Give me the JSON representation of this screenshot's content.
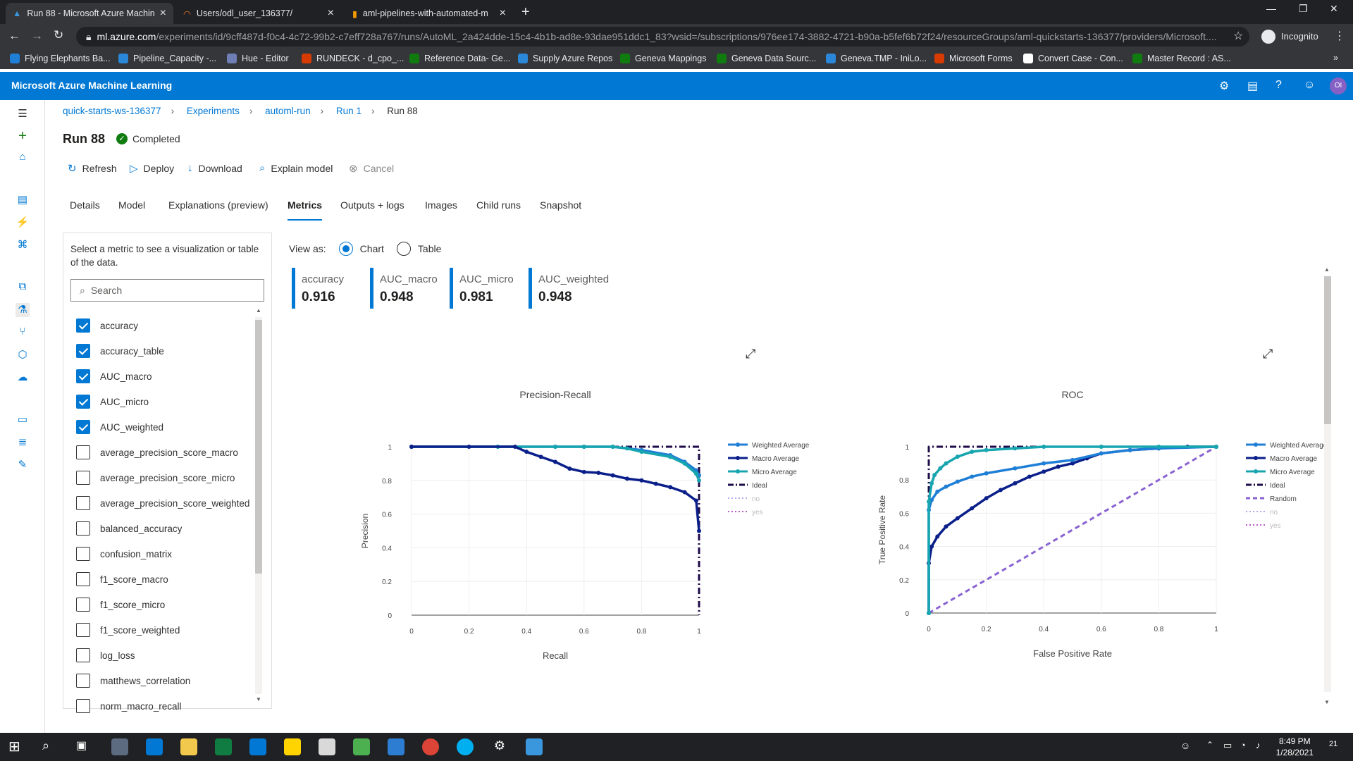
{
  "browser": {
    "tabs": [
      {
        "title": "Run 88 - Microsoft Azure Machin"
      },
      {
        "title": "Users/odl_user_136377/"
      },
      {
        "title": "aml-pipelines-with-automated-m"
      }
    ],
    "url_domain": "ml.azure.com",
    "url_rest": "/experiments/id/9cff487d-f0c4-4c72-99b2-c7eff728a767/runs/AutoML_2a424dde-15c4-4b1b-ad8e-93dae951ddc1_83?wsid=/subscriptions/976ee174-3882-4721-b90a-b5fef6b72f24/resourceGroups/aml-quickstarts-136377/providers/Microsoft....",
    "profile_label": "Incognito",
    "bookmarks": [
      "Flying Elephants Ba...",
      "Pipeline_Capacity -...",
      "Hue - Editor",
      "RUNDECK - d_cpo_...",
      "Reference Data- Ge...",
      "Supply Azure Repos",
      "Geneva Mappings",
      "Geneva Data Sourc...",
      "Geneva.TMP - IniLo...",
      "Microsoft Forms",
      "Convert Case - Con...",
      "Master Record : AS..."
    ]
  },
  "app": {
    "title": "Microsoft Azure Machine Learning",
    "avatar": "OI"
  },
  "breadcrumbs": [
    "quick-starts-ws-136377",
    "Experiments",
    "automl-run",
    "Run 1",
    "Run 88"
  ],
  "run": {
    "title": "Run 88",
    "status": "Completed"
  },
  "commands": {
    "refresh": "Refresh",
    "deploy": "Deploy",
    "download": "Download",
    "explain": "Explain model",
    "cancel": "Cancel"
  },
  "tabs": [
    "Details",
    "Model",
    "Explanations (preview)",
    "Metrics",
    "Outputs + logs",
    "Images",
    "Child runs",
    "Snapshot"
  ],
  "selected_tab": "Metrics",
  "metrics_panel": {
    "intro": "Select a metric to see a visualization or table of the data.",
    "search_placeholder": "Search",
    "items": [
      {
        "label": "accuracy",
        "checked": true
      },
      {
        "label": "accuracy_table",
        "checked": true
      },
      {
        "label": "AUC_macro",
        "checked": true
      },
      {
        "label": "AUC_micro",
        "checked": true
      },
      {
        "label": "AUC_weighted",
        "checked": true
      },
      {
        "label": "average_precision_score_macro",
        "checked": false
      },
      {
        "label": "average_precision_score_micro",
        "checked": false
      },
      {
        "label": "average_precision_score_weighted",
        "checked": false
      },
      {
        "label": "balanced_accuracy",
        "checked": false
      },
      {
        "label": "confusion_matrix",
        "checked": false
      },
      {
        "label": "f1_score_macro",
        "checked": false
      },
      {
        "label": "f1_score_micro",
        "checked": false
      },
      {
        "label": "f1_score_weighted",
        "checked": false
      },
      {
        "label": "log_loss",
        "checked": false
      },
      {
        "label": "matthews_correlation",
        "checked": false
      },
      {
        "label": "norm_macro_recall",
        "checked": false
      }
    ]
  },
  "view_as": {
    "label": "View as:",
    "chart": "Chart",
    "table": "Table",
    "selected": "Chart"
  },
  "metric_tiles": [
    {
      "name": "accuracy",
      "value": "0.916"
    },
    {
      "name": "AUC_macro",
      "value": "0.948"
    },
    {
      "name": "AUC_micro",
      "value": "0.981"
    },
    {
      "name": "AUC_weighted",
      "value": "0.948"
    }
  ],
  "colors": {
    "azure_blue": "#0078d4",
    "weighted": "#1f7fd6",
    "macro": "#0b1f8a",
    "micro": "#17a5b0",
    "ideal": "#1f0a4a",
    "random": "#8a63d2",
    "no": "#b9a6ea",
    "yes": "#b85cc6"
  },
  "chart_data": [
    {
      "type": "line",
      "title": "Precision-Recall",
      "xlabel": "Recall",
      "ylabel": "Precision",
      "xlim": [
        0,
        1
      ],
      "ylim": [
        0,
        1
      ],
      "xticks": [
        "0",
        "0.2",
        "0.4",
        "0.6",
        "0.8",
        "1"
      ],
      "yticks": [
        "0",
        "0.2",
        "0.4",
        "0.6",
        "0.8",
        "1"
      ],
      "legend": [
        "Weighted Average",
        "Macro Average",
        "Micro Average",
        "Ideal",
        "no",
        "yes"
      ],
      "series": [
        {
          "name": "Ideal",
          "style": "dashdot",
          "x": [
            0,
            1,
            1
          ],
          "y": [
            1,
            1,
            0
          ]
        },
        {
          "name": "Weighted Average",
          "x": [
            0,
            0.3,
            0.5,
            0.6,
            0.7,
            0.8,
            0.9,
            0.95,
            0.99,
            1
          ],
          "y": [
            1,
            1,
            1,
            1,
            1,
            0.98,
            0.95,
            0.91,
            0.86,
            0.83
          ]
        },
        {
          "name": "Micro Average",
          "x": [
            0,
            0.3,
            0.5,
            0.6,
            0.7,
            0.75,
            0.8,
            0.9,
            0.95,
            0.99,
            1
          ],
          "y": [
            1,
            1,
            1,
            1,
            1,
            0.99,
            0.97,
            0.94,
            0.9,
            0.84,
            0.8
          ]
        },
        {
          "name": "Macro Average",
          "x": [
            0,
            0.2,
            0.36,
            0.4,
            0.45,
            0.5,
            0.55,
            0.6,
            0.65,
            0.7,
            0.75,
            0.8,
            0.85,
            0.9,
            0.95,
            0.99,
            1
          ],
          "y": [
            1,
            1,
            1,
            0.97,
            0.94,
            0.91,
            0.87,
            0.85,
            0.845,
            0.83,
            0.81,
            0.8,
            0.78,
            0.76,
            0.73,
            0.68,
            0.5
          ]
        }
      ]
    },
    {
      "type": "line",
      "title": "ROC",
      "xlabel": "False Positive Rate",
      "ylabel": "True Positive Rate",
      "xlim": [
        0,
        1
      ],
      "ylim": [
        0,
        1
      ],
      "xticks": [
        "0",
        "0.2",
        "0.4",
        "0.6",
        "0.8",
        "1"
      ],
      "yticks": [
        "0",
        "0.2",
        "0.4",
        "0.6",
        "0.8",
        "1"
      ],
      "legend": [
        "Weighted Average",
        "Macro Average",
        "Micro Average",
        "Ideal",
        "Random",
        "no",
        "yes"
      ],
      "series": [
        {
          "name": "Ideal",
          "style": "dashdot",
          "x": [
            0,
            0,
            1
          ],
          "y": [
            0,
            1,
            1
          ]
        },
        {
          "name": "Random",
          "style": "dash",
          "x": [
            0,
            1
          ],
          "y": [
            0,
            1
          ]
        },
        {
          "name": "Macro Average",
          "x": [
            0,
            0,
            0.01,
            0.03,
            0.06,
            0.1,
            0.15,
            0.2,
            0.25,
            0.3,
            0.35,
            0.4,
            0.45,
            0.5,
            0.55,
            0.6,
            0.7,
            0.8,
            0.9,
            1
          ],
          "y": [
            0,
            0.3,
            0.4,
            0.46,
            0.52,
            0.57,
            0.63,
            0.69,
            0.74,
            0.78,
            0.82,
            0.85,
            0.88,
            0.9,
            0.93,
            0.96,
            0.98,
            0.99,
            1,
            1
          ]
        },
        {
          "name": "Weighted Average",
          "x": [
            0,
            0,
            0.01,
            0.03,
            0.06,
            0.1,
            0.15,
            0.2,
            0.3,
            0.4,
            0.5,
            0.6,
            0.7,
            0.8,
            1
          ],
          "y": [
            0,
            0.62,
            0.68,
            0.73,
            0.76,
            0.79,
            0.82,
            0.84,
            0.87,
            0.9,
            0.92,
            0.96,
            0.98,
            0.99,
            1
          ]
        },
        {
          "name": "Micro Average",
          "x": [
            0,
            0,
            0.01,
            0.02,
            0.04,
            0.06,
            0.1,
            0.15,
            0.2,
            0.3,
            0.4,
            0.6,
            0.8,
            1
          ],
          "y": [
            0,
            0.67,
            0.78,
            0.83,
            0.87,
            0.9,
            0.94,
            0.97,
            0.98,
            0.99,
            1,
            1,
            1,
            1
          ]
        }
      ]
    }
  ],
  "clock": {
    "time": "8:49 PM",
    "date": "1/28/2021"
  },
  "notifications": "21"
}
